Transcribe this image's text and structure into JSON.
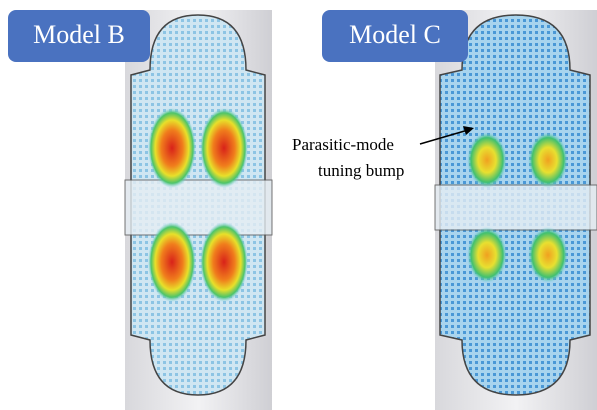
{
  "panels": [
    {
      "label": "Model B"
    },
    {
      "label": "Model C"
    }
  ],
  "annotation": {
    "lines": [
      "Parasitic-mode",
      "tuning bump"
    ]
  }
}
